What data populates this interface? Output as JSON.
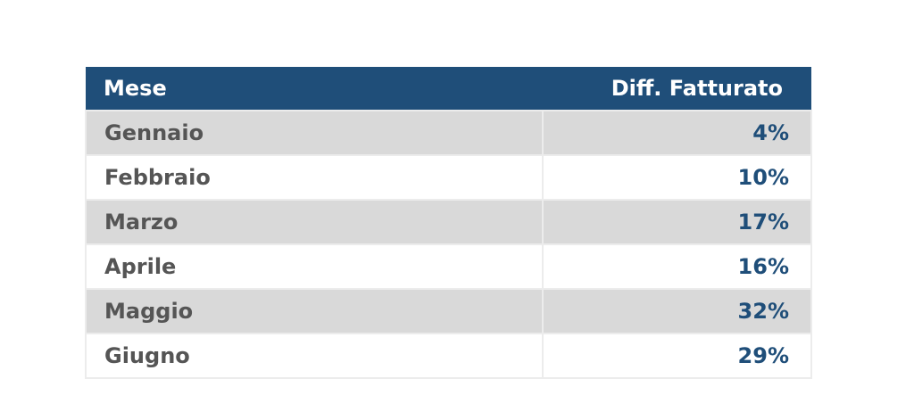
{
  "table": {
    "header": [
      "Mese",
      "Diff. Fatturato"
    ],
    "rows": [
      [
        "Gennaio",
        "4%"
      ],
      [
        "Febbraio",
        "10%"
      ],
      [
        "Marzo",
        "17%"
      ],
      [
        "Aprile",
        "16%"
      ],
      [
        "Maggio",
        "32%"
      ],
      [
        "Giugno",
        "29%"
      ]
    ]
  }
}
